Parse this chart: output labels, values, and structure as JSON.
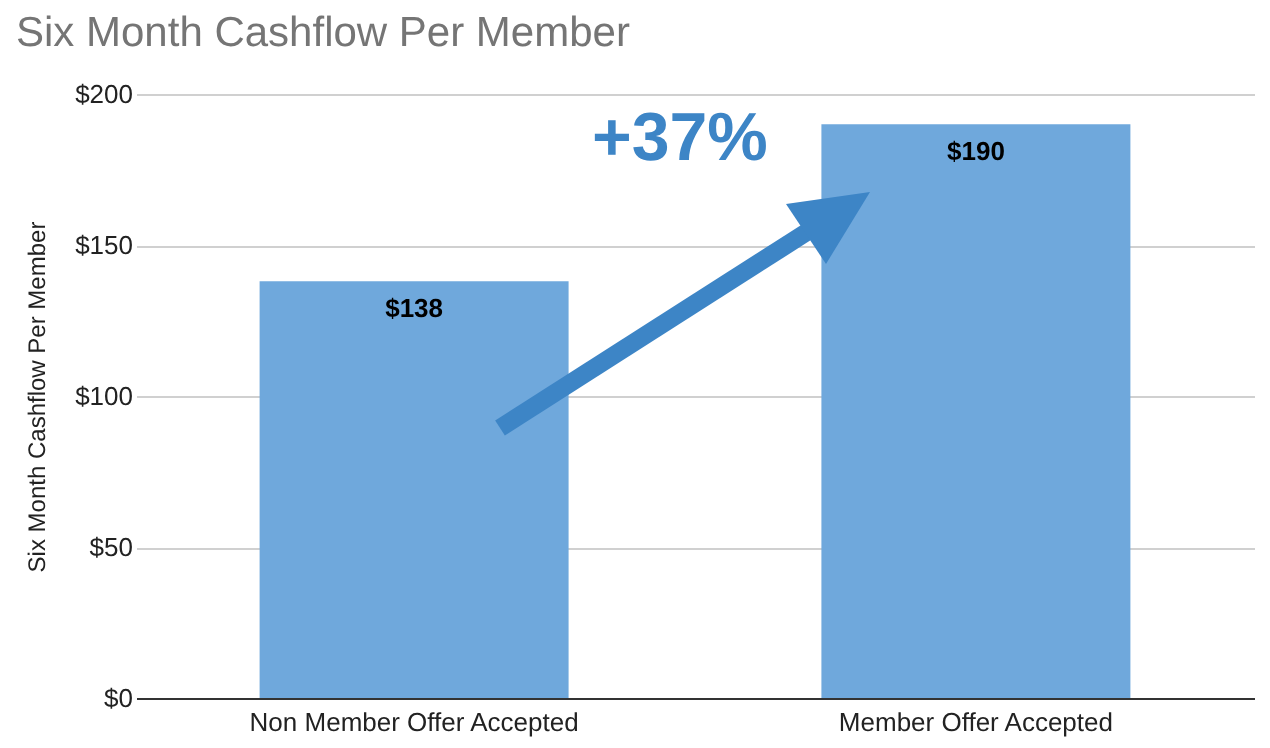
{
  "chart_data": {
    "type": "bar",
    "title": "Six Month Cashflow Per Member",
    "ylabel": "Six Month Cashflow Per Member",
    "categories": [
      "Non Member Offer Accepted",
      "Member Offer Accepted"
    ],
    "values": [
      138,
      190
    ],
    "color": "#6fa8dc",
    "value_labels": [
      "$138",
      "$190"
    ],
    "ylim": [
      0,
      200
    ],
    "yticks": [
      {
        "value": 0,
        "label": "$0"
      },
      {
        "value": 50,
        "label": "$50"
      },
      {
        "value": 100,
        "label": "$100"
      },
      {
        "value": 150,
        "label": "$150"
      },
      {
        "value": 200,
        "label": "$200"
      }
    ],
    "grid": "y",
    "annotations": [
      "+37%"
    ]
  }
}
